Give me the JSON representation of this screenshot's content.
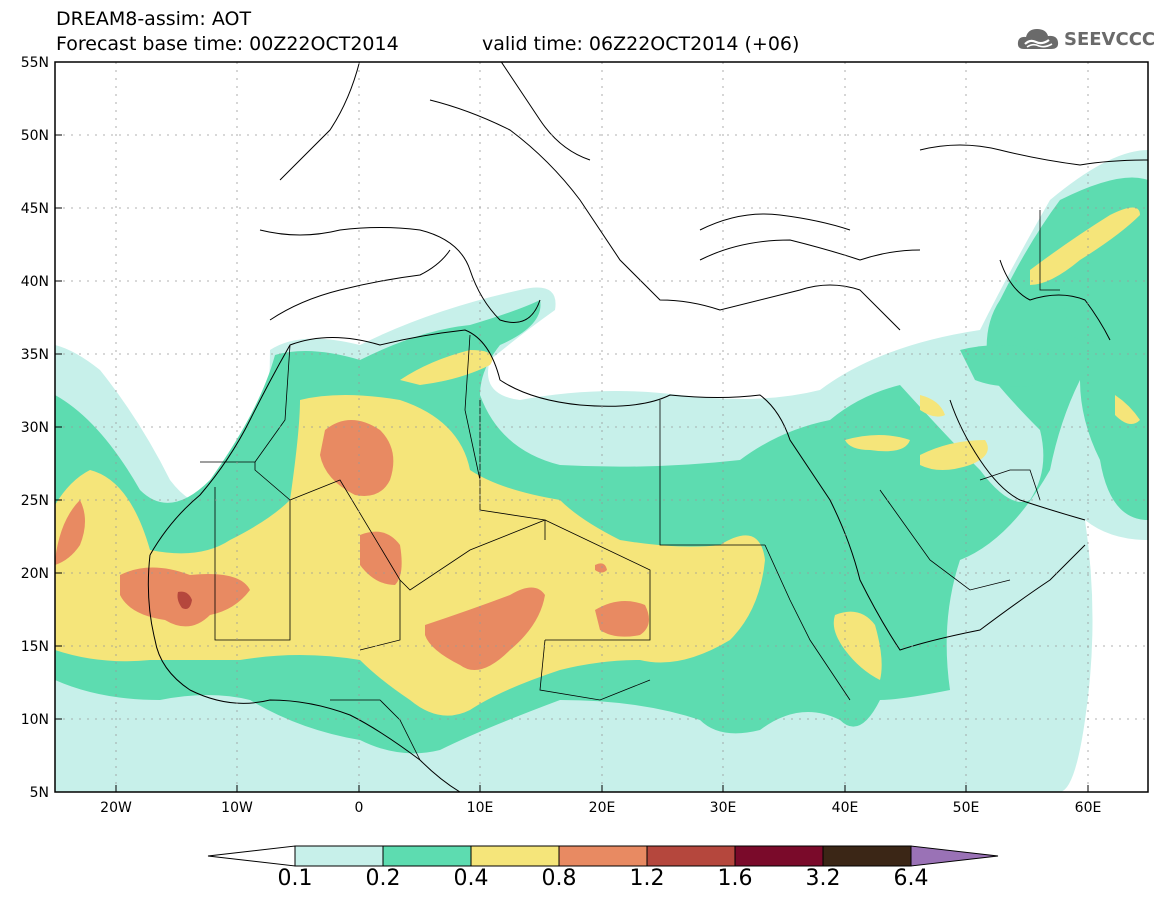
{
  "header": {
    "title": "DREAM8-assim: AOT",
    "base_time": "Forecast base time: 00Z22OCT2014",
    "valid_time": "valid time: 06Z22OCT2014 (+06)",
    "logo_text": "SEEVCCC"
  },
  "axes": {
    "lat_labels": [
      "55N",
      "50N",
      "45N",
      "40N",
      "35N",
      "30N",
      "25N",
      "20N",
      "15N",
      "10N",
      "5N"
    ],
    "lon_labels": [
      "20W",
      "10W",
      "0",
      "10E",
      "20E",
      "30E",
      "40E",
      "50E",
      "60E"
    ]
  },
  "colorbar": {
    "labels": [
      "0.1",
      "0.2",
      "0.4",
      "0.8",
      "1.2",
      "1.6",
      "3.2",
      "6.4"
    ],
    "colors": [
      "#c7f0ea",
      "#5ddcb0",
      "#f5e57a",
      "#e88a62",
      "#b5473d",
      "#7a0a2a",
      "#3b2616",
      "#9a72b6"
    ]
  },
  "icons": {
    "logo": "cloud-logo-icon"
  }
}
